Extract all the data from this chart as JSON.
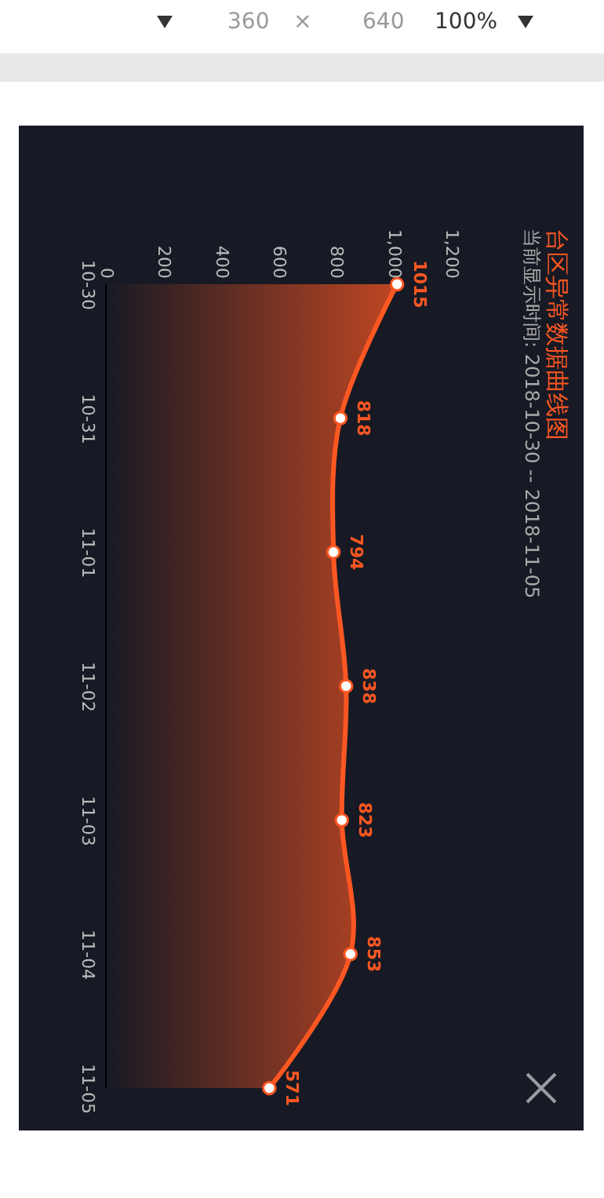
{
  "chart_data": {
    "type": "area",
    "title": "台区异常数据曲线图",
    "subtitle": "当前显示时间: 2018-10-30 -- 2018-11-05",
    "orientation": "horizontal",
    "categories": [
      "10-30",
      "10-31",
      "11-01",
      "11-02",
      "11-03",
      "11-04",
      "11-05"
    ],
    "values": [
      1015,
      818,
      794,
      838,
      823,
      853,
      571
    ],
    "color": "#ff5722",
    "xlim": [
      0,
      1200
    ],
    "xticks": [
      0,
      200,
      400,
      600,
      800,
      {
        "value": 1000,
        "label": "1,000"
      },
      {
        "value": 1200,
        "label": "1,200"
      }
    ],
    "marker": "circle",
    "data_labels": true,
    "grid": false,
    "annotations": [
      "360",
      "×",
      "640",
      "100%"
    ]
  }
}
